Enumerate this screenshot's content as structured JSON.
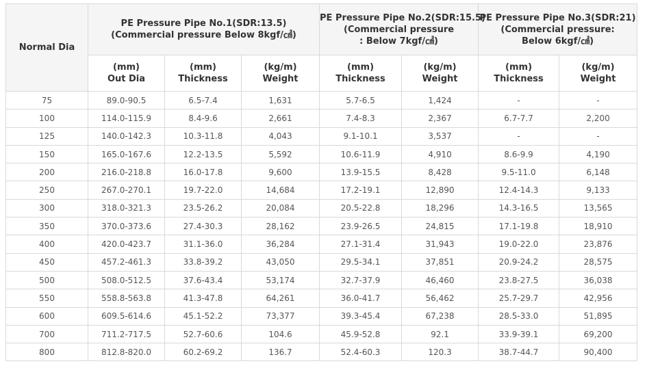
{
  "table": {
    "corner": "Normal Dia",
    "groups": [
      {
        "lines": [
          "PE Pressure Pipe No.1(SDR:13.5)",
          "(Commercial pressure  Below 8kgf/㎠)"
        ],
        "span": 3
      },
      {
        "lines": [
          "PE Pressure Pipe No.2(SDR:15.5)",
          "(Commercial pressure",
          ": Below 7kgf/㎠)"
        ],
        "span": 2
      },
      {
        "lines": [
          "PE Pressure Pipe No.3(SDR:21)",
          "(Commercial pressure:",
          "Below 6kgf/㎠)"
        ],
        "span": 2
      }
    ],
    "subheaders": [
      [
        "(mm)",
        "Out Dia"
      ],
      [
        "(mm)",
        "Thickness"
      ],
      [
        "(kg/m)",
        "Weight"
      ],
      [
        "(mm)",
        "Thickness"
      ],
      [
        "(kg/m)",
        "Weight"
      ],
      [
        "(mm)",
        "Thickness"
      ],
      [
        "(kg/m)",
        "Weight"
      ]
    ],
    "rows": [
      [
        "75",
        "89.0-90.5",
        "6.5-7.4",
        "1,631",
        "5.7-6.5",
        "1,424",
        "-",
        "-"
      ],
      [
        "100",
        "114.0-115.9",
        "8.4-9.6",
        "2,661",
        "7.4-8.3",
        "2,367",
        "6.7-7.7",
        "2,200"
      ],
      [
        "125",
        "140.0-142.3",
        "10.3-11.8",
        "4,043",
        "9.1-10.1",
        "3,537",
        "-",
        "-"
      ],
      [
        "150",
        "165.0-167.6",
        "12.2-13.5",
        "5,592",
        "10.6-11.9",
        "4,910",
        "8.6-9.9",
        "4,190"
      ],
      [
        "200",
        "216.0-218.8",
        "16.0-17.8",
        "9,600",
        "13.9-15.5",
        "8,428",
        "9.5-11.0",
        "6,148"
      ],
      [
        "250",
        "267.0-270.1",
        "19.7-22.0",
        "14,684",
        "17.2-19.1",
        "12,890",
        "12.4-14.3",
        "9,133"
      ],
      [
        "300",
        "318.0-321.3",
        "23.5-26.2",
        "20,084",
        "20.5-22.8",
        "18,296",
        "14.3-16.5",
        "13,565"
      ],
      [
        "350",
        "370.0-373.6",
        "27.4-30.3",
        "28,162",
        "23.9-26.5",
        "24,815",
        "17.1-19.8",
        "18,910"
      ],
      [
        "400",
        "420.0-423.7",
        "31.1-36.0",
        "36,284",
        "27.1-31.4",
        "31,943",
        "19.0-22.0",
        "23,876"
      ],
      [
        "450",
        "457.2-461.3",
        "33.8-39.2",
        "43,050",
        "29.5-34.1",
        "37,851",
        "20.9-24.2",
        "28,575"
      ],
      [
        "500",
        "508.0-512.5",
        "37.6-43.4",
        "53,174",
        "32.7-37.9",
        "46,460",
        "23.8-27.5",
        "36,038"
      ],
      [
        "550",
        "558.8-563.8",
        "41.3-47.8",
        "64,261",
        "36.0-41.7",
        "56,462",
        "25.7-29.7",
        "42,956"
      ],
      [
        "600",
        "609.5-614.6",
        "45.1-52.2",
        "73,377",
        "39.3-45.4",
        "67,238",
        "28.5-33.0",
        "51,895"
      ],
      [
        "700",
        "711.2-717.5",
        "52.7-60.6",
        "104.6",
        "45.9-52.8",
        "92.1",
        "33.9-39.1",
        "69,200"
      ],
      [
        "800",
        "812.8-820.0",
        "60.2-69.2",
        "136.7",
        "52.4-60.3",
        "120.3",
        "38.7-44.7",
        "90,400"
      ]
    ]
  }
}
